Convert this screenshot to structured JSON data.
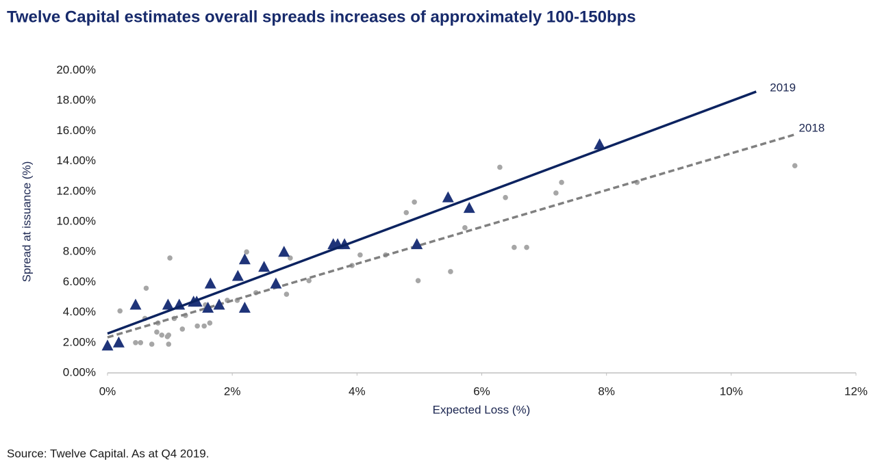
{
  "chart_data": {
    "type": "scatter",
    "title": "Twelve Capital estimates overall spreads increases of approximately 100-150bps",
    "x_label": "Expected Loss (%)",
    "y_label": "Spread at issuance (%)",
    "source": "Source: Twelve Capital. As at Q4 2019.",
    "xlim": [
      0,
      12
    ],
    "ylim": [
      0,
      20
    ],
    "xticks": [
      {
        "value": 0,
        "label": "0%"
      },
      {
        "value": 2,
        "label": "2%"
      },
      {
        "value": 4,
        "label": "4%"
      },
      {
        "value": 6,
        "label": "6%"
      },
      {
        "value": 8,
        "label": "8%"
      },
      {
        "value": 10,
        "label": "10%"
      },
      {
        "value": 12,
        "label": "12%"
      }
    ],
    "yticks": [
      {
        "value": 0,
        "label": "0.00%"
      },
      {
        "value": 2,
        "label": "2.00%"
      },
      {
        "value": 4,
        "label": "4.00%"
      },
      {
        "value": 6,
        "label": "6.00%"
      },
      {
        "value": 8,
        "label": "8.00%"
      },
      {
        "value": 10,
        "label": "10.00%"
      },
      {
        "value": 12,
        "label": "12.00%"
      },
      {
        "value": 14,
        "label": "14.00%"
      },
      {
        "value": 16,
        "label": "16.00%"
      },
      {
        "value": 18,
        "label": "18.00%"
      },
      {
        "value": 20,
        "label": "20.00%"
      }
    ],
    "grid": false,
    "series": [
      {
        "name": "2018",
        "color": "#a6a6a6",
        "marker": "circle",
        "x": [
          0.2,
          0.45,
          0.53,
          0.6,
          0.62,
          0.71,
          0.79,
          0.81,
          0.87,
          0.96,
          0.98,
          0.98,
          1.0,
          1.07,
          1.2,
          1.25,
          1.44,
          1.55,
          1.57,
          1.64,
          1.92,
          2.08,
          2.23,
          2.38,
          2.87,
          2.93,
          3.23,
          3.92,
          4.05,
          4.46,
          4.79,
          4.92,
          4.98,
          5.5,
          5.73,
          6.29,
          6.38,
          6.52,
          6.72,
          7.19,
          7.28,
          8.49,
          11.02
        ],
        "values": [
          4.1,
          2.0,
          2.0,
          3.6,
          5.6,
          1.9,
          2.7,
          3.3,
          2.5,
          2.4,
          2.5,
          1.9,
          7.6,
          3.6,
          2.9,
          3.8,
          3.1,
          3.1,
          4.5,
          3.3,
          4.8,
          4.8,
          8.0,
          5.3,
          5.2,
          7.6,
          6.1,
          7.1,
          7.8,
          7.8,
          10.6,
          11.3,
          6.1,
          6.7,
          9.6,
          13.6,
          11.6,
          8.3,
          8.3,
          11.9,
          12.6,
          12.6,
          13.7
        ],
        "trend": {
          "x": [
            0,
            11.05
          ],
          "values": [
            2.35,
            15.8
          ],
          "color": "#808080",
          "dashed": true
        }
      },
      {
        "name": "2019",
        "color": "#1f3479",
        "marker": "triangle",
        "x": [
          0.0,
          0.18,
          0.45,
          0.97,
          1.15,
          1.38,
          1.43,
          1.61,
          1.65,
          1.79,
          2.09,
          2.2,
          2.2,
          2.51,
          2.7,
          2.83,
          3.62,
          3.69,
          3.8,
          4.96,
          5.46,
          5.8,
          7.89
        ],
        "values": [
          1.8,
          2.0,
          4.5,
          4.5,
          4.5,
          4.7,
          4.7,
          4.3,
          5.9,
          4.5,
          6.4,
          4.3,
          7.5,
          7.0,
          5.9,
          8.0,
          8.5,
          8.5,
          8.5,
          8.5,
          11.6,
          10.9,
          15.1
        ],
        "trend": {
          "x": [
            0,
            10.4
          ],
          "values": [
            2.6,
            18.6
          ],
          "color": "#0c2360",
          "dashed": false
        }
      }
    ]
  }
}
